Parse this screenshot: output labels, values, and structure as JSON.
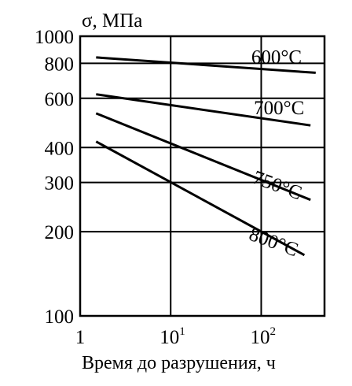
{
  "chart_data": {
    "type": "line",
    "ylabel": "σ, МПа",
    "xlabel": "Время до разрушения, ч",
    "x_scale": "log",
    "y_scale": "log",
    "xlim": [
      1,
      500
    ],
    "ylim": [
      100,
      1000
    ],
    "x_ticks": [
      {
        "value": 1,
        "base": "1",
        "exp": ""
      },
      {
        "value": 10,
        "base": "10",
        "exp": "1"
      },
      {
        "value": 100,
        "base": "10",
        "exp": "2"
      }
    ],
    "y_ticks": [
      {
        "value": 1000,
        "label": "1000"
      },
      {
        "value": 800,
        "label": "800"
      },
      {
        "value": 600,
        "label": "600"
      },
      {
        "value": 400,
        "label": "400"
      },
      {
        "value": 300,
        "label": "300"
      },
      {
        "value": 200,
        "label": "200"
      },
      {
        "value": 100,
        "label": "100"
      }
    ],
    "grid": true,
    "series": [
      {
        "name": "600°C",
        "x": [
          1.5,
          400
        ],
        "y": [
          840,
          740
        ]
      },
      {
        "name": "700°C",
        "x": [
          1.5,
          350
        ],
        "y": [
          620,
          480
        ]
      },
      {
        "name": "750°C",
        "x": [
          1.5,
          350
        ],
        "y": [
          530,
          260
        ]
      },
      {
        "name": "800°C",
        "x": [
          1.5,
          300
        ],
        "y": [
          420,
          165
        ]
      }
    ]
  }
}
